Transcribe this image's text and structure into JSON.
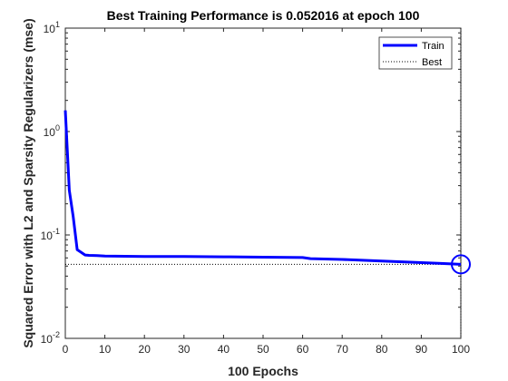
{
  "chart_data": {
    "type": "line",
    "title": "Best Training Performance is 0.052016 at epoch 100",
    "xlabel": "100 Epochs",
    "ylabel": "Squared Error with L2 and Sparsity Regularizers  (mse)",
    "xlim": [
      0,
      100
    ],
    "ylim": [
      0.01,
      10
    ],
    "yscale": "log",
    "grid": false,
    "legend_position": "top-right",
    "x_ticks": [
      0,
      10,
      20,
      30,
      40,
      50,
      60,
      70,
      80,
      90,
      100
    ],
    "y_ticks": [
      {
        "value": 0.01,
        "base": "10",
        "exp": "-2"
      },
      {
        "value": 0.1,
        "base": "10",
        "exp": "-1"
      },
      {
        "value": 1,
        "base": "10",
        "exp": "0"
      },
      {
        "value": 10,
        "base": "10",
        "exp": "1"
      }
    ],
    "series": [
      {
        "name": "Train",
        "color": "#0000ff",
        "style": "solid",
        "x": [
          0,
          1,
          2,
          3,
          4,
          5,
          6,
          8,
          10,
          20,
          30,
          40,
          50,
          60,
          62,
          70,
          80,
          90,
          95,
          100
        ],
        "y": [
          1.6,
          0.27,
          0.15,
          0.072,
          0.068,
          0.064,
          0.0635,
          0.0632,
          0.0625,
          0.062,
          0.062,
          0.0615,
          0.061,
          0.0605,
          0.059,
          0.058,
          0.056,
          0.054,
          0.053,
          0.052016
        ]
      },
      {
        "name": "Best",
        "color": "#000000",
        "style": "dotted"
      }
    ],
    "best": {
      "epoch": 100,
      "value": 0.052016,
      "marker_color": "#0000ff"
    }
  }
}
